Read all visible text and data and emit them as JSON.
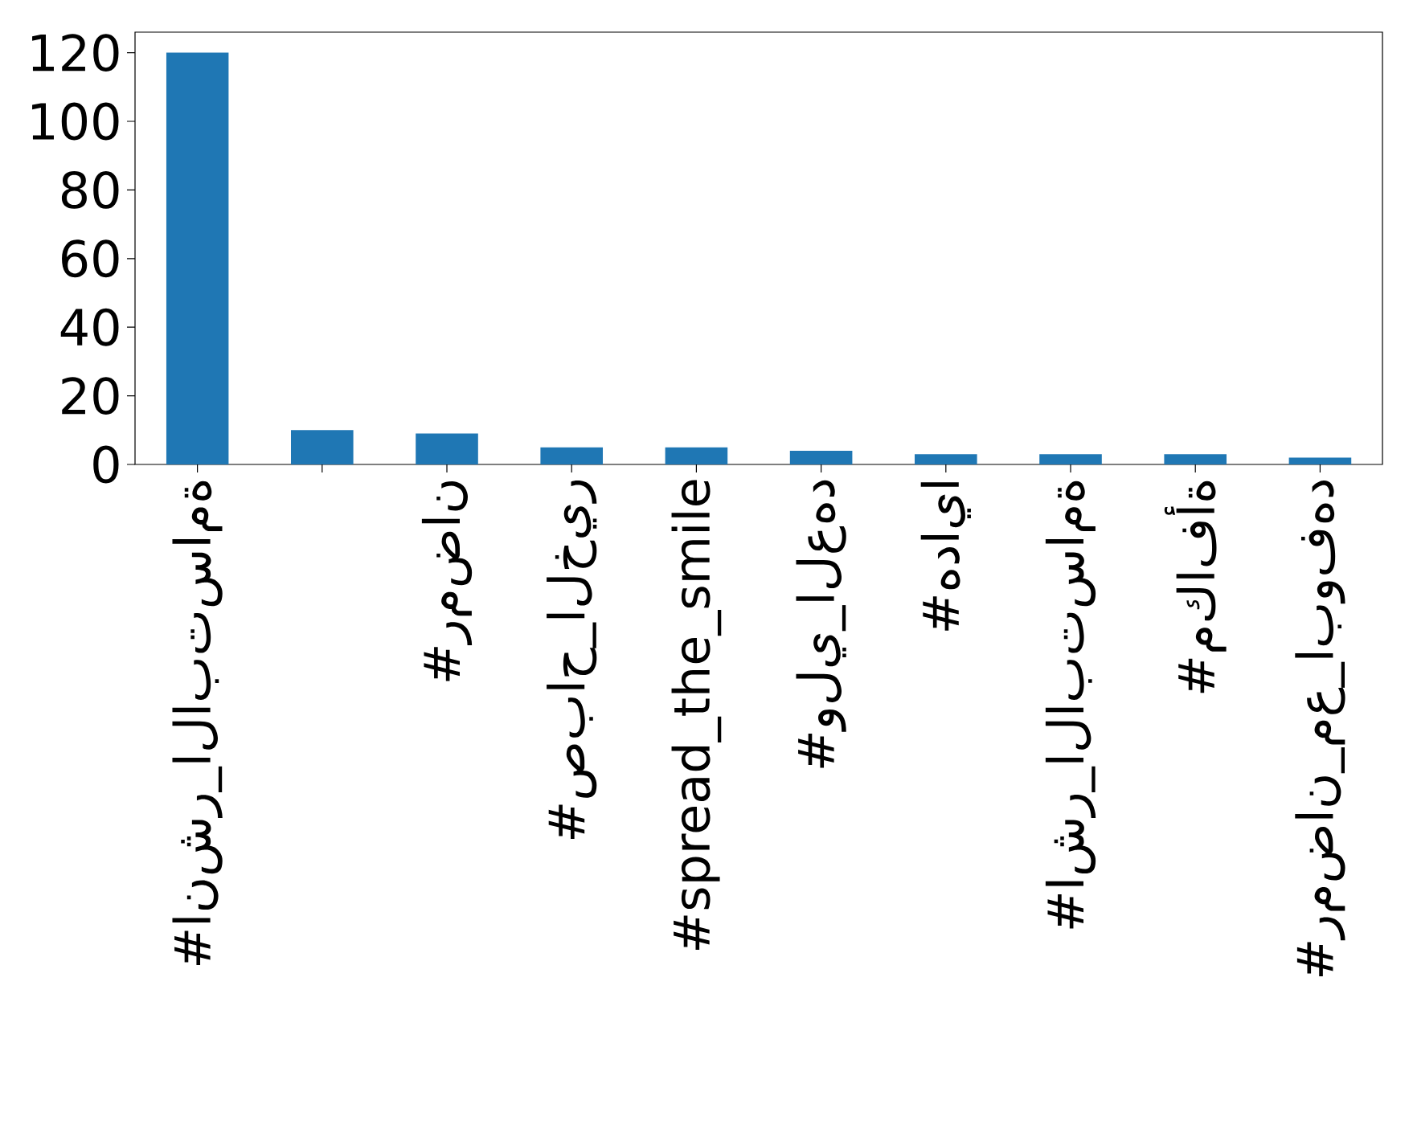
{
  "chart_data": {
    "type": "bar",
    "categories": [
      "#انشر_الابتسامة",
      null,
      "#رمضان",
      "#صباح_الخير",
      "#spread_the_smile",
      "#ولي_العهد",
      "#هدايا",
      "#اشر_الابتسامة",
      "#مكافأة",
      "#رمضان_مع_ابوفهد"
    ],
    "values": [
      120,
      10,
      9,
      5,
      5,
      4,
      3,
      3,
      3,
      2
    ],
    "color": "#1f77b4",
    "ylim": [
      0,
      126
    ],
    "yticks": [
      0,
      20,
      40,
      60,
      80,
      100,
      120
    ]
  }
}
